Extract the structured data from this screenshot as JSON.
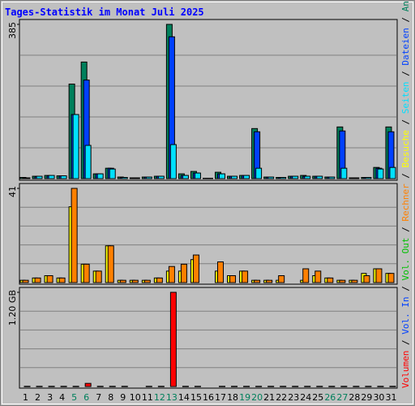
{
  "chart_data": {
    "type": "bar",
    "title": "Tages-Statistik im Monat Juli 2025",
    "categories": [
      "1",
      "2",
      "3",
      "4",
      "5",
      "6",
      "7",
      "8",
      "9",
      "10",
      "11",
      "12",
      "13",
      "14",
      "15",
      "16",
      "17",
      "18",
      "19",
      "20",
      "21",
      "22",
      "23",
      "24",
      "25",
      "26",
      "27",
      "28",
      "29",
      "30",
      "31"
    ],
    "label_colors": [
      "#000000",
      "#000000",
      "#000000",
      "#000000",
      "#00805c",
      "#00805c",
      "#000000",
      "#000000",
      "#000000",
      "#000000",
      "#000000",
      "#00805c",
      "#00805c",
      "#000000",
      "#000000",
      "#000000",
      "#000000",
      "#000000",
      "#00805c",
      "#00805c",
      "#000000",
      "#000000",
      "#000000",
      "#000000",
      "#000000",
      "#00805c",
      "#00805c",
      "#000000",
      "#000000",
      "#000000",
      "#000000"
    ],
    "legend_separator": " / ",
    "grid": true,
    "panels": [
      {
        "ylim": [
          0,
          385
        ],
        "yticks": [
          385
        ],
        "series": [
          {
            "name": "Anfragen",
            "color": "#00805c",
            "values": [
              3,
              6,
              8,
              7,
              236,
              291,
              12,
              26,
              4,
              2,
              4,
              6,
              385,
              12,
              18,
              1,
              16,
              6,
              8,
              125,
              4,
              3,
              6,
              8,
              6,
              4,
              129,
              2,
              3,
              28,
              129
            ]
          },
          {
            "name": "Dateien",
            "color": "#0040ff",
            "values": [
              2,
              5,
              7,
              7,
              160,
              246,
              12,
              26,
              3,
              2,
              4,
              6,
              354,
              8,
              14,
              1,
              12,
              6,
              8,
              117,
              4,
              3,
              6,
              6,
              6,
              4,
              119,
              2,
              3,
              26,
              117
            ]
          },
          {
            "name": "Seiten",
            "color": "#00e0ff",
            "values": [
              2,
              6,
              8,
              7,
              160,
              83,
              12,
              24,
              3,
              2,
              4,
              6,
              85,
              8,
              14,
              1,
              12,
              6,
              8,
              26,
              4,
              3,
              6,
              6,
              6,
              4,
              26,
              2,
              3,
              24,
              28
            ]
          }
        ]
      },
      {
        "ylim": [
          0,
          41
        ],
        "yticks": [
          41
        ],
        "series": [
          {
            "name": "Besuche",
            "color": "#ffff00",
            "values": [
              1,
              2,
              3,
              2,
              33,
              8,
              5,
              16,
              1,
              1,
              1,
              2,
              5,
              5,
              10,
              0,
              5,
              3,
              5,
              1,
              1,
              1,
              0,
              1,
              3,
              2,
              1,
              1,
              4,
              6,
              4
            ]
          },
          {
            "name": "Rechner",
            "color": "#ff8000",
            "values": [
              1,
              2,
              3,
              2,
              41,
              8,
              5,
              16,
              1,
              1,
              1,
              2,
              7,
              8,
              12,
              0,
              9,
              3,
              5,
              1,
              1,
              3,
              0,
              6,
              5,
              2,
              1,
              1,
              3,
              6,
              4
            ]
          }
        ]
      },
      {
        "ylim": [
          0,
          1.2
        ],
        "yticks": [
          {
            "value": 1.2,
            "label": "1.20 GB"
          }
        ],
        "series": [
          {
            "name": "Vol. Out",
            "color": "#00c000",
            "values": [
              null,
              null,
              null,
              null,
              null,
              null,
              null,
              null,
              null,
              null,
              null,
              null,
              null,
              null,
              null,
              null,
              null,
              null,
              null,
              null,
              null,
              null,
              null,
              null,
              null,
              null,
              null,
              null,
              null,
              null,
              null
            ]
          },
          {
            "name": "Vol. In",
            "color": "#0040ff",
            "values": [
              null,
              null,
              null,
              null,
              null,
              null,
              null,
              null,
              null,
              null,
              null,
              null,
              null,
              null,
              null,
              null,
              null,
              null,
              null,
              null,
              null,
              null,
              null,
              null,
              null,
              null,
              null,
              null,
              null,
              null,
              null
            ]
          },
          {
            "name": "Volumen",
            "color": "#ff0000",
            "values": [
              0.003,
              0.003,
              0.003,
              0.003,
              0.003,
              0.04,
              0.003,
              0.003,
              0.003,
              0,
              0.003,
              0.003,
              1.2,
              0.003,
              0.003,
              0,
              0.003,
              0.003,
              0.003,
              0.003,
              0.003,
              0.003,
              0.003,
              0.003,
              0.003,
              0.003,
              0.003,
              0.003,
              0.003,
              0.003,
              0.003
            ]
          }
        ]
      }
    ]
  }
}
